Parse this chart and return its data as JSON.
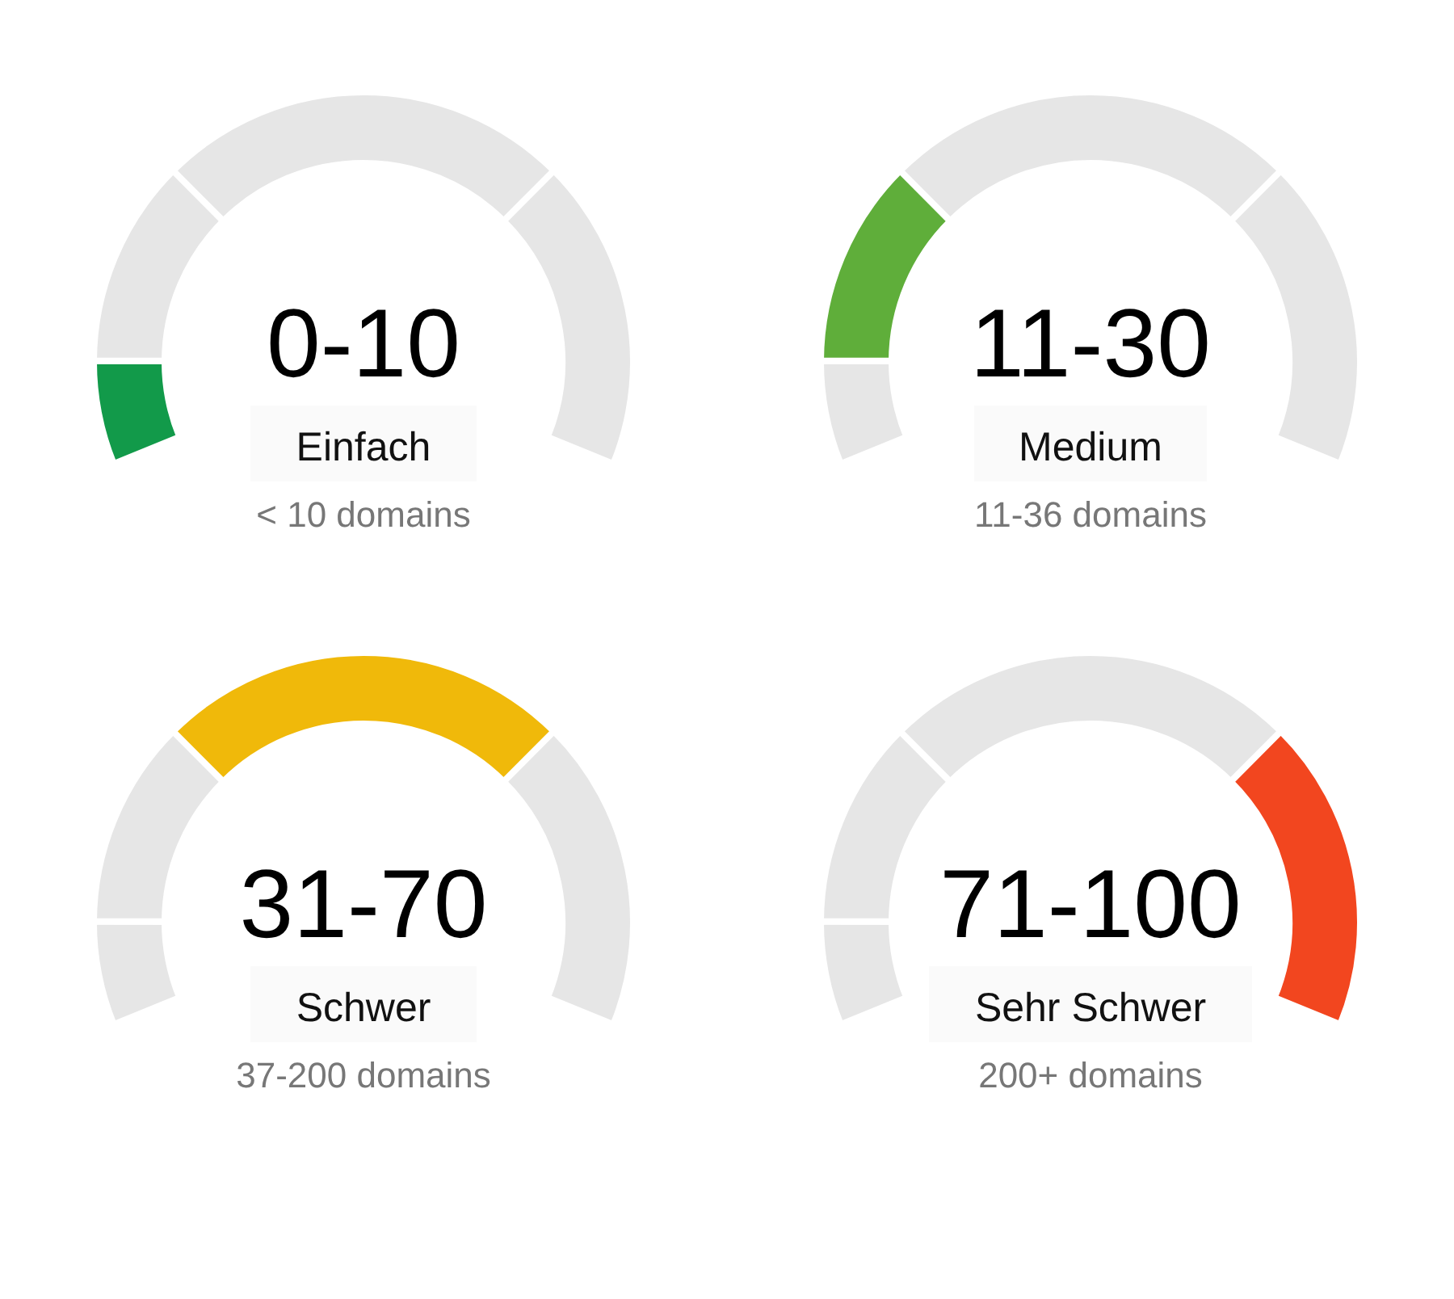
{
  "chart_data": [
    {
      "type": "donut",
      "title": "0-10",
      "subtitle": "Einfach",
      "annotations": [
        "< 10 domains"
      ],
      "categories": [
        null,
        null,
        null,
        null
      ],
      "values": [
        10,
        20,
        40,
        30
      ],
      "colors": [
        "#129a4a",
        "#e6e6e6",
        "#e6e6e6",
        "#e6e6e6"
      ]
    },
    {
      "type": "donut",
      "title": "11-30",
      "subtitle": "Medium",
      "annotations": [
        "11-36 domains"
      ],
      "categories": [
        null,
        null,
        null,
        null
      ],
      "values": [
        10,
        20,
        40,
        30
      ],
      "colors": [
        "#e6e6e6",
        "#5fae3a",
        "#e6e6e6",
        "#e6e6e6"
      ]
    },
    {
      "type": "donut",
      "title": "31-70",
      "subtitle": "Schwer",
      "annotations": [
        "37-200 domains"
      ],
      "categories": [
        null,
        null,
        null,
        null
      ],
      "values": [
        10,
        20,
        40,
        30
      ],
      "colors": [
        "#e6e6e6",
        "#e6e6e6",
        "#f0b90a",
        "#e6e6e6"
      ]
    },
    {
      "type": "donut",
      "title": "71-100",
      "subtitle": "Sehr Schwer",
      "annotations": [
        "200+ domains"
      ],
      "categories": [
        null,
        null,
        null,
        null
      ],
      "values": [
        10,
        20,
        40,
        30
      ],
      "colors": [
        "#e6e6e6",
        "#e6e6e6",
        "#e6e6e6",
        "#f2461f"
      ]
    }
  ]
}
